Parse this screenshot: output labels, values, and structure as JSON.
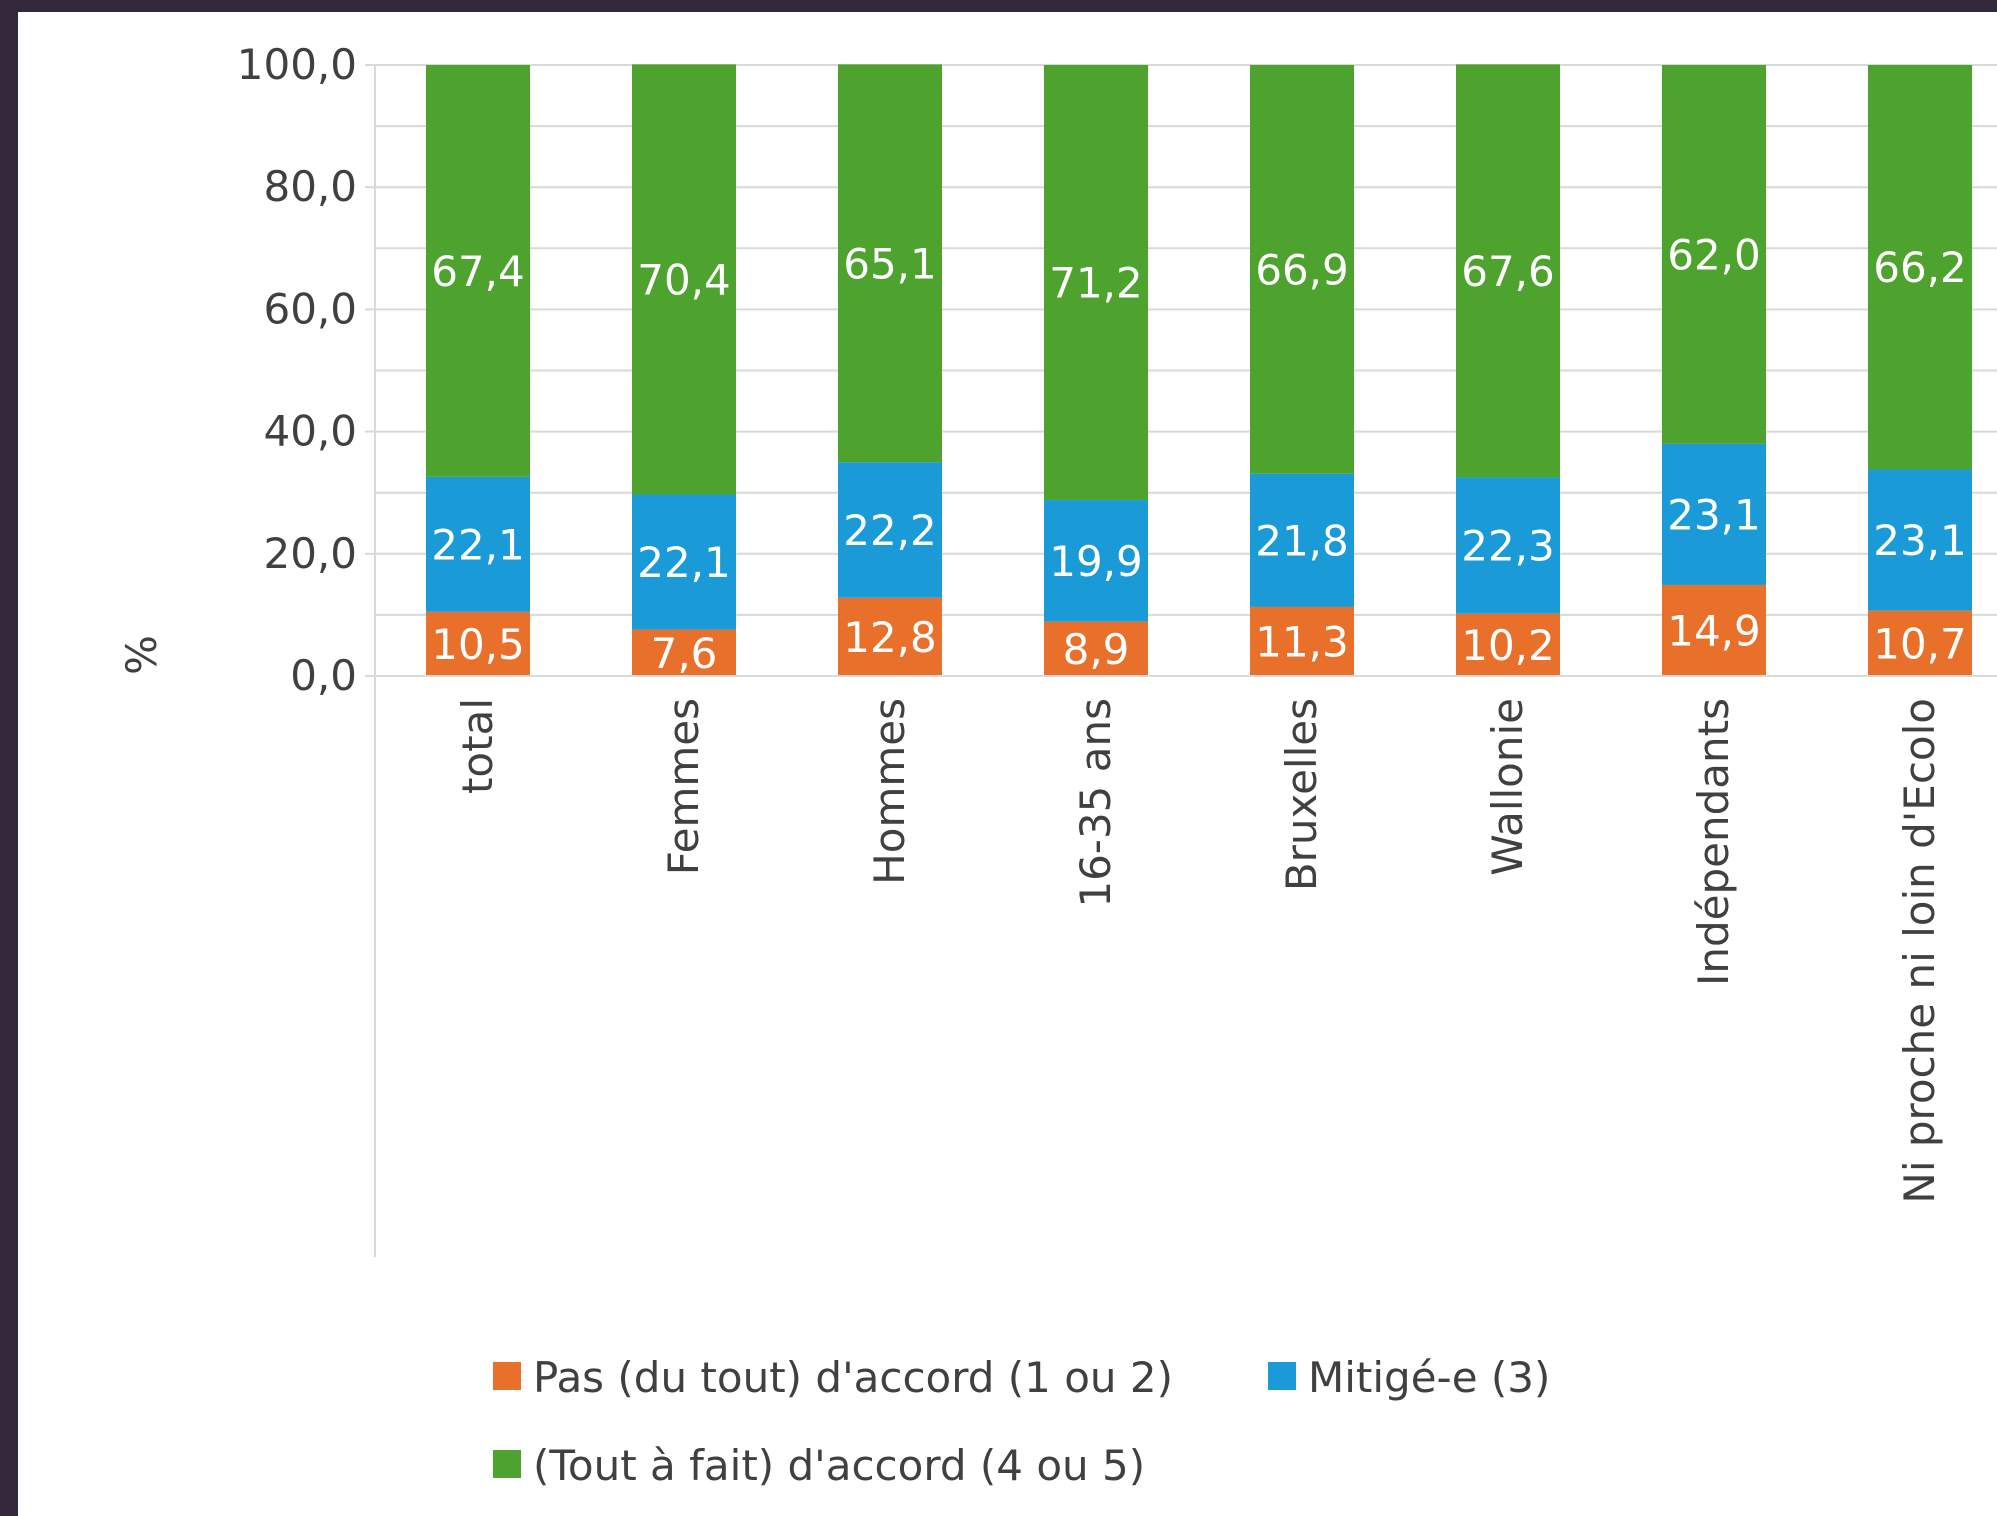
{
  "chart_data": {
    "type": "bar",
    "stacked": true,
    "ylabel": "%",
    "ylim": [
      0,
      100
    ],
    "yticks": [
      "0,0",
      "20,0",
      "40,0",
      "60,0",
      "80,0",
      "100,0"
    ],
    "grid": true,
    "legend_position": "bottom",
    "categories": [
      "total",
      "Femmes",
      "Hommes",
      "16-35 ans",
      "Bruxelles",
      "Wallonie",
      "Indépendants",
      "Ni proche ni loin d'Ecolo"
    ],
    "series": [
      {
        "name": "Pas (du tout) d'accord (1 ou 2)",
        "color": "#e8702a",
        "values": [
          10.5,
          7.6,
          12.8,
          8.9,
          11.3,
          10.2,
          14.9,
          10.7
        ],
        "labels": [
          "10,5",
          "7,6",
          "12,8",
          "8,9",
          "11,3",
          "10,2",
          "14,9",
          "10,7"
        ]
      },
      {
        "name": "Mitigé-e (3)",
        "color": "#1a9bd7",
        "values": [
          22.1,
          22.1,
          22.2,
          19.9,
          21.8,
          22.3,
          23.1,
          23.1
        ],
        "labels": [
          "22,1",
          "22,1",
          "22,2",
          "19,9",
          "21,8",
          "22,3",
          "23,1",
          "23,1"
        ]
      },
      {
        "name": "(Tout à fait) d'accord (4 ou 5)",
        "color": "#4ea22e",
        "values": [
          67.4,
          70.4,
          65.1,
          71.2,
          66.9,
          67.6,
          62.0,
          66.2
        ],
        "labels": [
          "67,4",
          "70,4",
          "65,1",
          "71,2",
          "66,9",
          "67,6",
          "62,0",
          "66,2"
        ]
      }
    ]
  }
}
